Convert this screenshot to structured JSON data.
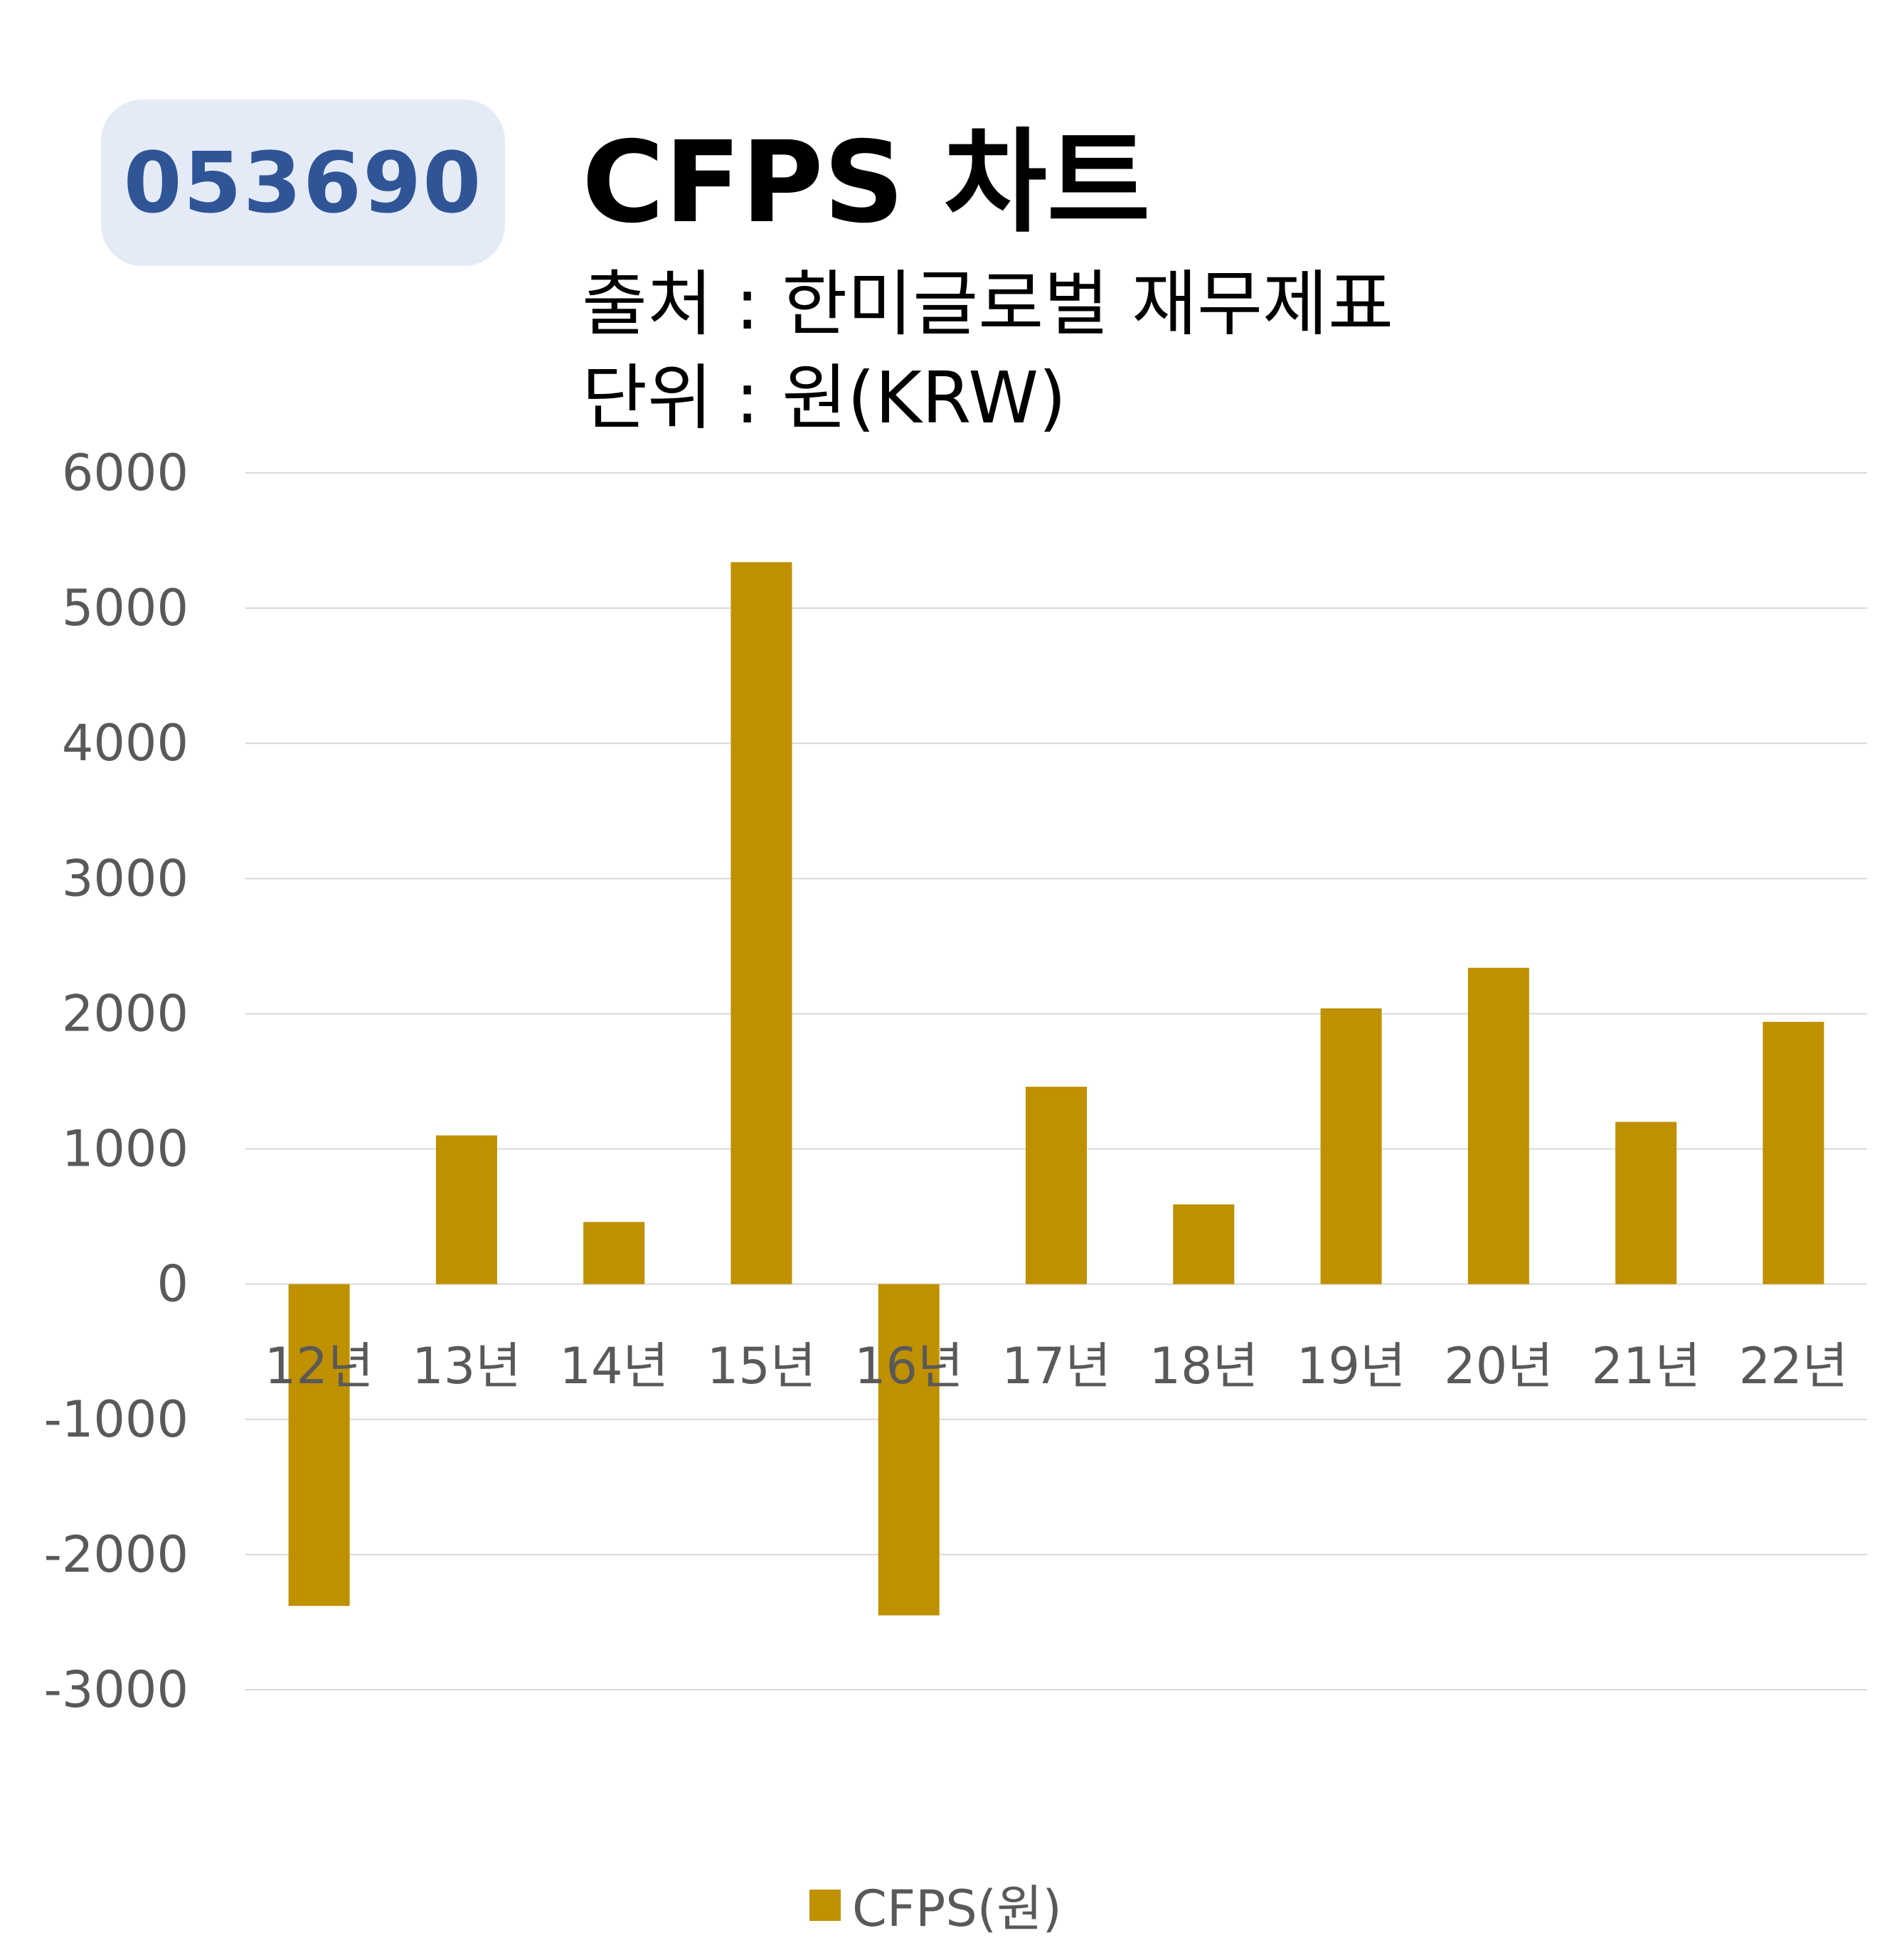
{
  "badge": {
    "code": "053690"
  },
  "header": {
    "title": "CFPS 차트",
    "source": "출처 : 한미글로벌 재무제표",
    "unit": "단위 : 원(KRW)"
  },
  "colors": {
    "bar": "#bf9000",
    "badge_bg": "#e4ebf7",
    "badge_text": "#2f5597",
    "grid": "#d9d9d9",
    "axis_text": "#595959"
  },
  "chart_data": {
    "type": "bar",
    "categories": [
      "12년",
      "13년",
      "14년",
      "15년",
      "16년",
      "17년",
      "18년",
      "19년",
      "20년",
      "21년",
      "22년"
    ],
    "series": [
      {
        "name": "CFPS(원)",
        "values": [
          -2380,
          1100,
          460,
          5340,
          -2450,
          1460,
          590,
          2040,
          2340,
          1200,
          1940
        ]
      }
    ],
    "yticks": [
      "6000",
      "5000",
      "4000",
      "3000",
      "2000",
      "1000",
      "0",
      "-1000",
      "-2000",
      "-3000"
    ],
    "ylim": [
      -3000,
      6000
    ],
    "grid": true,
    "legend": "bottom"
  }
}
